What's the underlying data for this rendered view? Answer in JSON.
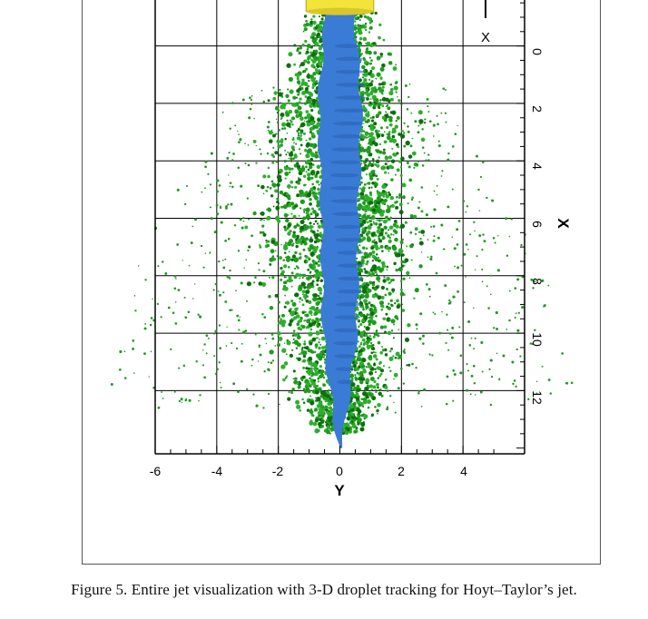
{
  "figure": {
    "caption": "Figure 5. Entire jet visualization with 3-D droplet tracking for Hoyt–Taylor’s jet."
  },
  "chart_data": {
    "type": "scatter",
    "title": "",
    "xlabel": "Y",
    "ylabel": "X",
    "x_ticks": [
      "-6",
      "-4",
      "-2",
      "0",
      "2",
      "4"
    ],
    "y_ticks": [
      "0",
      "2",
      "4",
      "6",
      "8",
      "10",
      "12"
    ],
    "legend_marker_label": "X",
    "xlim": [
      -6,
      6
    ],
    "ylim": [
      14.2,
      -1.6
    ],
    "grid": true,
    "series": [
      {
        "kind": "droplets",
        "color": "#1f9a1f",
        "core_halfwidth_at_x": [
          [
            -1.2,
            1.2
          ],
          [
            2,
            2.7
          ],
          [
            6,
            3.2
          ],
          [
            10,
            2.8
          ],
          [
            12.5,
            1.8
          ],
          [
            13.5,
            0.8
          ]
        ],
        "halo_halfwidth_at_x": [
          [
            2,
            3.8
          ],
          [
            6,
            6
          ],
          [
            10,
            7.5
          ],
          [
            12.3,
            7.8
          ]
        ]
      },
      {
        "kind": "liquid-core",
        "color": "#3a7bd5",
        "halfwidth_at_x": [
          [
            -1.4,
            0.45
          ],
          [
            2,
            0.7
          ],
          [
            6,
            0.6
          ],
          [
            10,
            0.55
          ],
          [
            13,
            0.2
          ],
          [
            14,
            0.03
          ]
        ]
      },
      {
        "kind": "nozzle",
        "color": "#f2e43a",
        "x_range": [
          -2,
          -1.2
        ],
        "y_range": [
          -1.1,
          1.1
        ]
      }
    ]
  }
}
